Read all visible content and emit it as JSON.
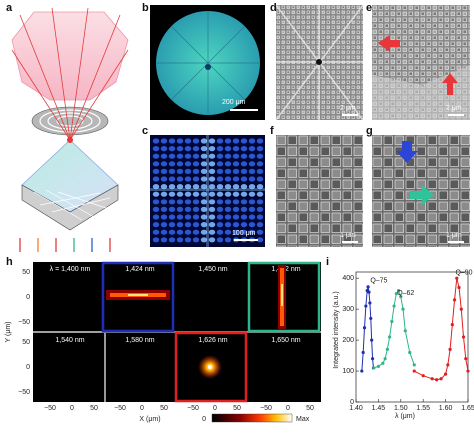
{
  "panel_labels": {
    "a": "a",
    "b": "b",
    "c": "c",
    "d": "d",
    "e": "e",
    "f": "f",
    "g": "g",
    "h": "h",
    "i": "i"
  },
  "scale_bars": {
    "b": "200 μm",
    "c": "100 μm",
    "d": "2 μm",
    "e": "2 μm",
    "f": "1 μm",
    "g": "1 μm"
  },
  "panel_h": {
    "tiles": [
      {
        "label": "λ = 1,400 nm",
        "frame": "none"
      },
      {
        "label": "1,424 nm",
        "frame": "#1f2fb5"
      },
      {
        "label": "1,450 nm",
        "frame": "none"
      },
      {
        "label": "1,492 nm",
        "frame": "#2fb58a"
      },
      {
        "label": "1,540 nm",
        "frame": "none"
      },
      {
        "label": "1,580 nm",
        "frame": "none"
      },
      {
        "label": "1,626 nm",
        "frame": "#e01f1f"
      },
      {
        "label": "1,650 nm",
        "frame": "none"
      }
    ],
    "y_ticks": [
      "50",
      "0",
      "−50",
      "50",
      "0",
      "−50"
    ],
    "x_ticks": [
      "−50",
      "0",
      "50"
    ],
    "y_label": "Y (μm)",
    "x_label": "X (μm)",
    "colorbar_min": "0",
    "colorbar_max": "Max"
  },
  "chart_data": {
    "type": "line",
    "xlabel": "λ (μm)",
    "ylabel": "Integrated intensity (a.u.)",
    "xlim": [
      1.4,
      1.65
    ],
    "ylim": [
      0,
      420
    ],
    "x_ticks": [
      "1.40",
      "1.45",
      "1.50",
      "1.55",
      "1.60",
      "1.65"
    ],
    "y_ticks": [
      "0",
      "100",
      "200",
      "300",
      "400"
    ],
    "series": [
      {
        "color": "#1f2fb5",
        "x": [
          1.413,
          1.416,
          1.419,
          1.422,
          1.425,
          1.427,
          1.429,
          1.431,
          1.433,
          1.435,
          1.437,
          1.439
        ],
        "y": [
          100,
          160,
          240,
          310,
          360,
          372,
          355,
          320,
          270,
          200,
          140,
          110
        ]
      },
      {
        "color": "#2fb58a",
        "x": [
          1.44,
          1.45,
          1.46,
          1.465,
          1.47,
          1.475,
          1.48,
          1.485,
          1.49,
          1.495,
          1.5,
          1.505,
          1.51,
          1.52,
          1.53
        ],
        "y": [
          110,
          115,
          125,
          140,
          170,
          210,
          260,
          310,
          350,
          360,
          340,
          300,
          230,
          160,
          120
        ]
      },
      {
        "color": "#e01f1f",
        "x": [
          1.53,
          1.55,
          1.57,
          1.58,
          1.59,
          1.6,
          1.605,
          1.61,
          1.615,
          1.62,
          1.625,
          1.63,
          1.635,
          1.64,
          1.645,
          1.65
        ],
        "y": [
          100,
          85,
          75,
          72,
          75,
          90,
          120,
          170,
          250,
          330,
          400,
          370,
          300,
          210,
          140,
          100
        ]
      }
    ],
    "annotations": [
      {
        "text": "Q–75",
        "x": 1.432,
        "y": 380
      },
      {
        "text": "Q–62",
        "x": 1.492,
        "y": 340
      },
      {
        "text": "Q–90",
        "x": 1.622,
        "y": 405
      }
    ]
  }
}
